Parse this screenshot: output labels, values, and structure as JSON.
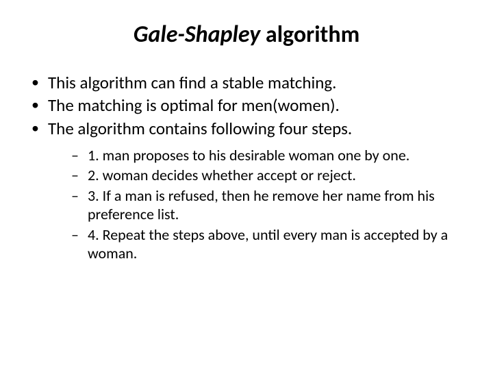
{
  "title": {
    "italic_part": "Gale-Shapley",
    "rest": "   algorithm"
  },
  "bullets": [
    {
      "text": "This algorithm  can  find  a  stable matching."
    },
    {
      "text": "The matching is optimal for men(women)."
    },
    {
      "text": "The algorithm contains following four steps."
    }
  ],
  "sub_bullets": [
    {
      "text": "1.  man proposes to his desirable  woman one by one."
    },
    {
      "text": "2.  woman decides whether accept or reject."
    },
    {
      "text": "3.   If a man is refused, then he remove her name from his preference list."
    },
    {
      "text": "4.  Repeat the steps above, until  every man is accepted by a woman."
    }
  ],
  "style": {
    "background_color": "#ffffff",
    "text_color": "#000000",
    "title_fontsize": 34,
    "bullet_fontsize": 25,
    "sub_bullet_fontsize": 22,
    "font_family": "Calibri"
  }
}
